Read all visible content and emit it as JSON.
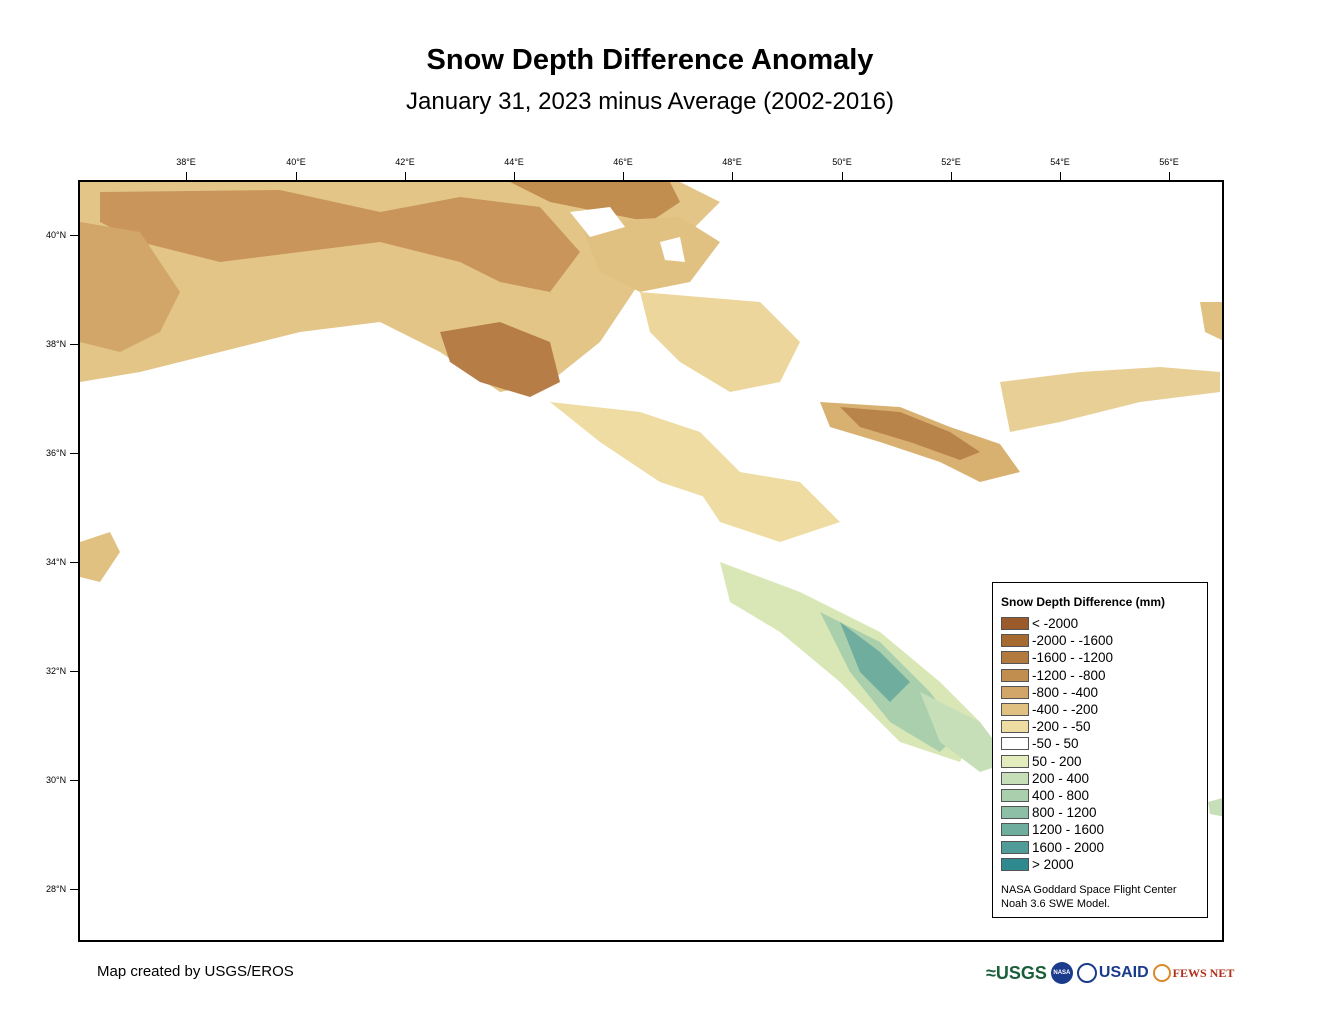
{
  "title": "Snow Depth Difference Anomaly",
  "subtitle": "January 31, 2023 minus Average (2002-2016)",
  "map": {
    "lon_labels": [
      "38°E",
      "40°E",
      "42°E",
      "44°E",
      "46°E",
      "48°E",
      "50°E",
      "52°E",
      "54°E",
      "56°E"
    ],
    "lat_labels": [
      "40°N",
      "38°N",
      "36°N",
      "34°N",
      "32°N",
      "30°N",
      "28°N"
    ]
  },
  "legend": {
    "title": "Snow Depth Difference (mm)",
    "items": [
      {
        "label": "< -2000",
        "color": "#9a5a2a"
      },
      {
        "label": "-2000 - -1600",
        "color": "#a6692f"
      },
      {
        "label": "-1600 - -1200",
        "color": "#b37a3f"
      },
      {
        "label": "-1200 - -800",
        "color": "#c18e50"
      },
      {
        "label": "-800 - -400",
        "color": "#d2a668"
      },
      {
        "label": "-400 - -200",
        "color": "#e0c182"
      },
      {
        "label": "-200 - -50",
        "color": "#efdca3"
      },
      {
        "label": "-50 - 50",
        "color": "#ffffff"
      },
      {
        "label": "50 - 200",
        "color": "#e3ecbc"
      },
      {
        "label": "200 - 400",
        "color": "#c7dfb8"
      },
      {
        "label": "400 - 800",
        "color": "#a9cfad"
      },
      {
        "label": "800 - 1200",
        "color": "#8cbfa6"
      },
      {
        "label": "1200 - 1600",
        "color": "#6fae9f"
      },
      {
        "label": "1600 - 2000",
        "color": "#4f9c98"
      },
      {
        "label": "> 2000",
        "color": "#2e8a8f"
      }
    ],
    "credit_line1": "NASA Goddard Space Flight Center",
    "credit_line2": "Noah 3.6 SWE Model."
  },
  "footer": {
    "credit": "Map created by USGS/EROS",
    "logos": {
      "usgs": "≈USGS",
      "nasa": "NASA",
      "usaid": "USAID",
      "fews": "FEWS NET"
    }
  }
}
